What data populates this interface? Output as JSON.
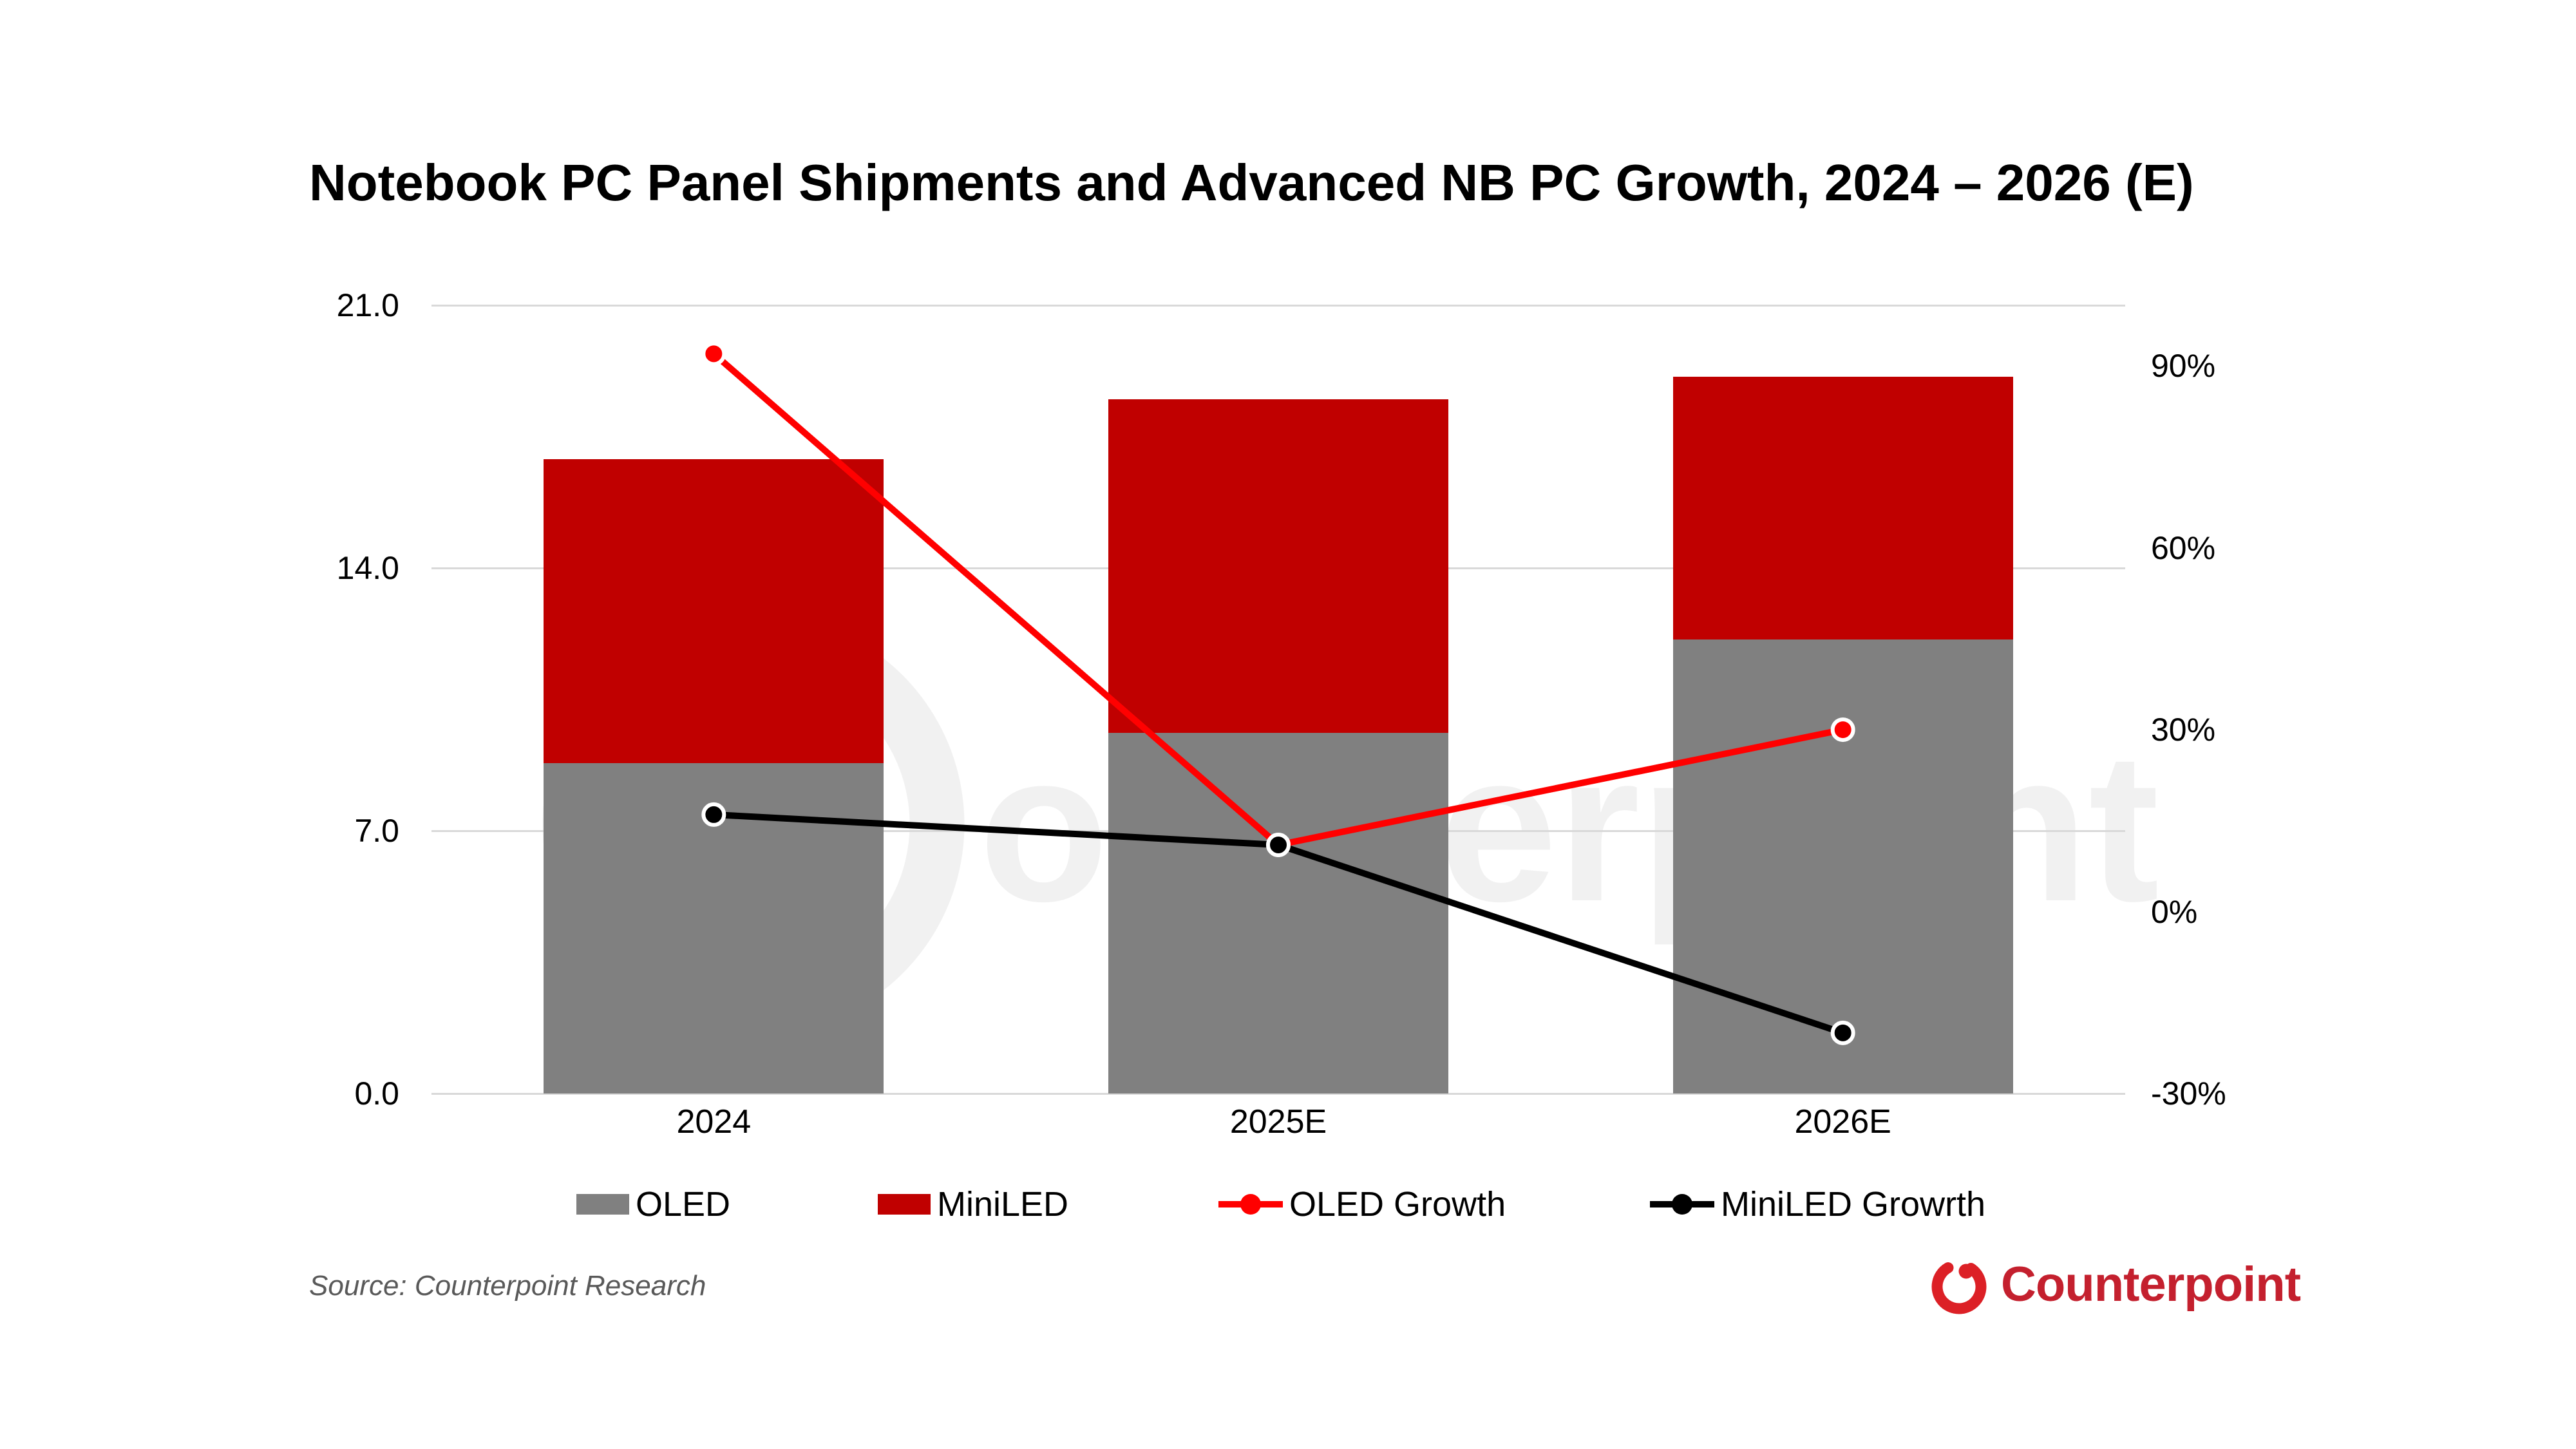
{
  "title": "Notebook PC Panel Shipments and Advanced NB PC Growth, 2024 – 2026 (E)",
  "source": "Source: Counterpoint Research",
  "brand": {
    "logo_text": "Counterpoint",
    "logo_mark": "counterpoint-swirl-icon"
  },
  "watermark_text": "ounterpoint",
  "colors": {
    "oled_bar": "#808080",
    "miniled_bar": "#C00000",
    "oled_growth_line": "#FF0000",
    "miniled_growth_line": "#000000",
    "gridline": "#D9D9D9",
    "source_text": "#595959",
    "brand_red": "#C4202E",
    "brand_mark_red": "#DC2026",
    "marker_ring": "#FFFFFF"
  },
  "legend": [
    {
      "label": "OLED",
      "type": "bar",
      "color": "#808080"
    },
    {
      "label": "MiniLED",
      "type": "bar",
      "color": "#C00000"
    },
    {
      "label": "OLED Growth",
      "type": "line",
      "color": "#FF0000"
    },
    {
      "label": "MiniLED Growrth",
      "type": "line",
      "color": "#000000"
    }
  ],
  "chart_data": {
    "type": "combo: stacked bar (left axis) + line (right axis)",
    "categories": [
      "2024",
      "2025E",
      "2026E"
    ],
    "bar_series": [
      {
        "name": "OLED",
        "stack_order": 1,
        "values": [
          8.8,
          9.6,
          12.1
        ],
        "color": "#808080"
      },
      {
        "name": "MiniLED",
        "stack_order": 2,
        "values": [
          8.1,
          8.9,
          7.0
        ],
        "color": "#C00000"
      }
    ],
    "stacked_totals": [
      16.9,
      18.5,
      19.1
    ],
    "line_series": [
      {
        "name": "OLED Growth",
        "axis": "right",
        "values_pct": [
          92,
          11,
          30
        ],
        "color": "#FF0000"
      },
      {
        "name": "MiniLED Growrth",
        "axis": "right",
        "values_pct": [
          16,
          11,
          -20
        ],
        "color": "#000000"
      }
    ],
    "left_axis": {
      "min": 0,
      "max": 21,
      "tick_values": [
        21,
        14,
        7,
        0
      ],
      "tick_labels": [
        "21.0",
        "14.0",
        "7.0",
        "0.0"
      ]
    },
    "right_axis": {
      "min": -30,
      "max": 100,
      "tick_values": [
        90,
        60,
        30,
        0,
        -30
      ],
      "tick_labels": [
        "90%",
        "60%",
        "30%",
        "0%",
        "-30%"
      ]
    },
    "grid": "horizontal gridlines only",
    "legend_position": "bottom"
  }
}
